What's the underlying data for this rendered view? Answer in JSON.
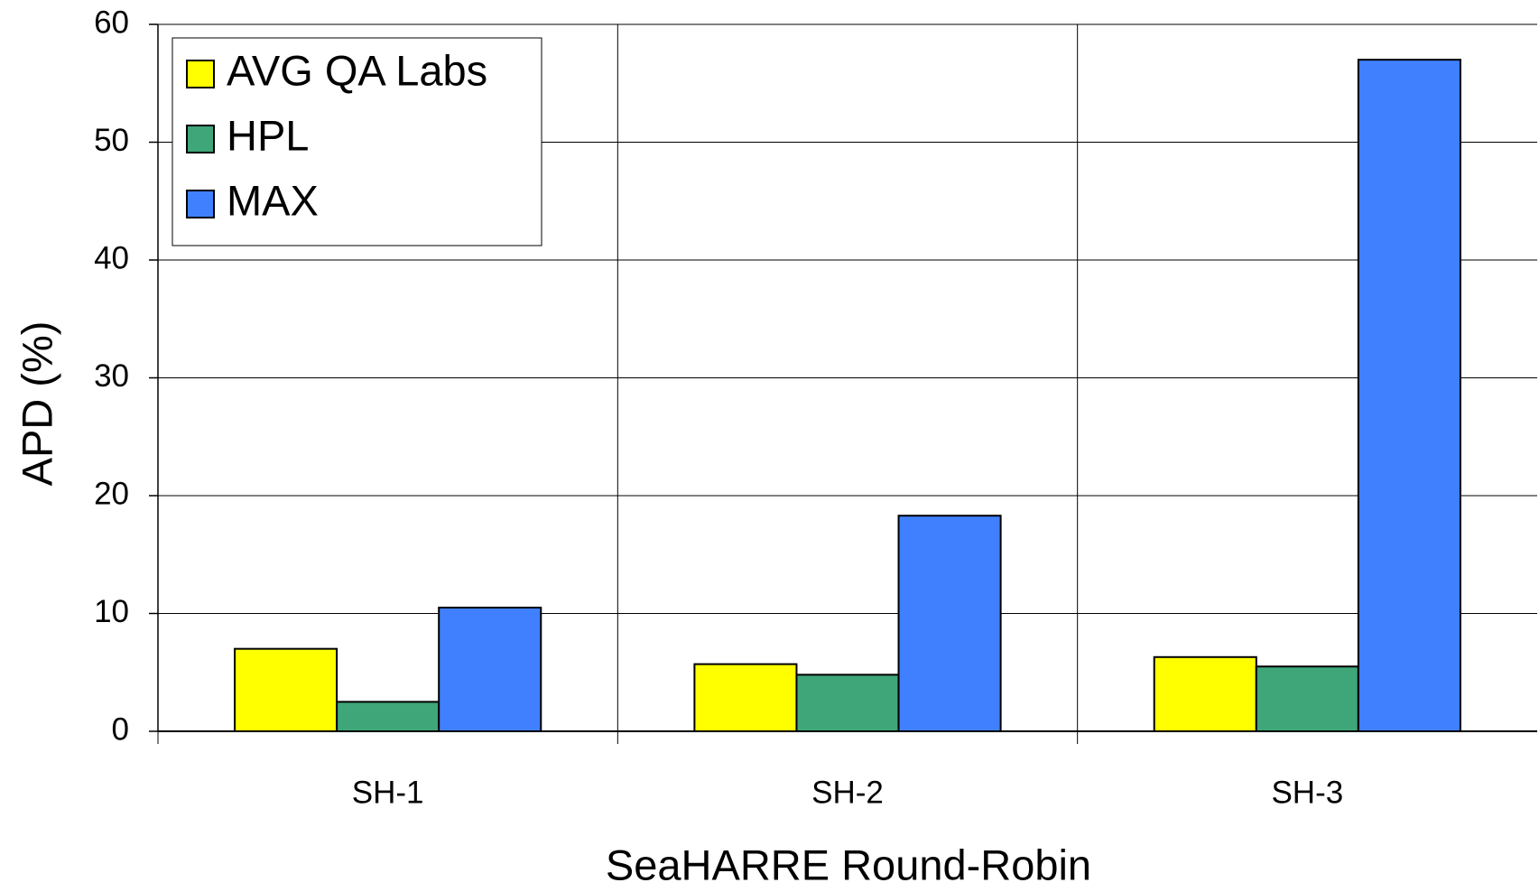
{
  "chart_data": {
    "type": "bar",
    "x_label": "SeaHARRE Round-Robin",
    "y_label": "APD (%)",
    "categories": [
      "SH-1",
      "SH-2",
      "SH-3"
    ],
    "series": [
      {
        "name": "AVG QA Labs",
        "color": "#ffff00",
        "values": [
          7.0,
          5.7,
          6.3
        ]
      },
      {
        "name": "HPL",
        "color": "#3fa679",
        "values": [
          2.5,
          4.8,
          5.5
        ]
      },
      {
        "name": "MAX",
        "color": "#4080ff",
        "values": [
          10.5,
          18.3,
          57.0
        ]
      }
    ],
    "ylim": [
      0,
      60
    ],
    "yticks": [
      0,
      10,
      20,
      30,
      40,
      50,
      60
    ],
    "grid": true,
    "legend": "upper left"
  }
}
